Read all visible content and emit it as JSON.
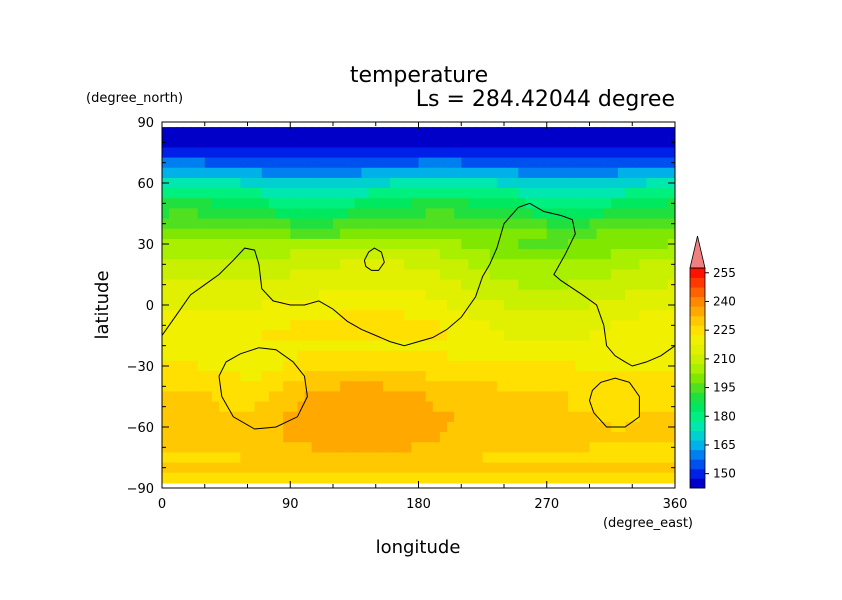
{
  "chart_data": {
    "type": "heatmap",
    "title": "temperature",
    "subtitle": "Ls = 284.42044 degree",
    "xlabel": "longitude",
    "ylabel": "latitude",
    "x_unit": "(degree_east)",
    "y_unit": "(degree_north)",
    "xlim": [
      0,
      360
    ],
    "ylim": [
      -90,
      90
    ],
    "x_ticks": [
      0,
      90,
      180,
      270,
      360
    ],
    "y_ticks": [
      90,
      60,
      30,
      0,
      -30,
      -60,
      -90
    ],
    "x_tick_labels": [
      "0",
      "90",
      "180",
      "270",
      "360"
    ],
    "y_tick_labels": [
      "90",
      "60",
      "30",
      "0",
      "−30",
      "−60",
      "−90"
    ],
    "colorbar": {
      "levels": [
        145,
        150,
        155,
        160,
        165,
        170,
        175,
        180,
        185,
        190,
        195,
        200,
        205,
        210,
        215,
        220,
        225,
        230,
        235,
        240,
        245,
        250,
        255,
        260
      ],
      "colors": [
        "#0000c8",
        "#0020e8",
        "#0050f0",
        "#0080f0",
        "#00b0e8",
        "#00d0d0",
        "#00e8b0",
        "#00f080",
        "#00e860",
        "#20e040",
        "#50e020",
        "#80e800",
        "#a8f000",
        "#c8f000",
        "#e0f000",
        "#f0f000",
        "#ffe000",
        "#ffc800",
        "#ffa800",
        "#ff8800",
        "#ff6000",
        "#ff3800",
        "#ff1000",
        "#ff6060"
      ],
      "tick_labels": [
        "150",
        "165",
        "180",
        "195",
        "210",
        "225",
        "240",
        "255"
      ],
      "overflow_color": "#f08080"
    },
    "latitudes": [
      85,
      80,
      75,
      70,
      65,
      60,
      55,
      50,
      45,
      40,
      35,
      30,
      25,
      20,
      15,
      10,
      5,
      0,
      -5,
      -10,
      -15,
      -20,
      -25,
      -30,
      -35,
      -40,
      -45,
      -50,
      -55,
      -60,
      -65,
      -70,
      -75,
      -80,
      -85
    ],
    "zonal_mean": [
      147,
      149,
      152,
      158,
      166,
      174,
      181,
      187,
      192,
      197,
      201,
      205,
      208,
      211,
      213,
      215,
      217,
      219,
      221,
      223,
      224,
      225,
      226,
      227,
      229,
      231,
      232,
      232,
      233,
      233,
      233,
      232,
      231,
      230,
      229
    ],
    "contours": [
      {
        "name": "northern-boundary",
        "points": [
          [
            0,
            -15
          ],
          [
            10,
            -5
          ],
          [
            20,
            5
          ],
          [
            30,
            10
          ],
          [
            40,
            15
          ],
          [
            50,
            22
          ],
          [
            58,
            28
          ],
          [
            65,
            27
          ],
          [
            68,
            20
          ],
          [
            70,
            8
          ],
          [
            78,
            2
          ],
          [
            90,
            0
          ],
          [
            100,
            0
          ],
          [
            110,
            2
          ],
          [
            120,
            -2
          ],
          [
            130,
            -8
          ],
          [
            140,
            -12
          ],
          [
            150,
            -15
          ],
          [
            160,
            -18
          ],
          [
            170,
            -20
          ],
          [
            180,
            -18
          ],
          [
            190,
            -16
          ],
          [
            200,
            -12
          ],
          [
            210,
            -6
          ],
          [
            220,
            4
          ],
          [
            225,
            14
          ],
          [
            230,
            20
          ],
          [
            235,
            28
          ],
          [
            240,
            40
          ],
          [
            250,
            48
          ],
          [
            258,
            50
          ],
          [
            268,
            46
          ],
          [
            280,
            44
          ],
          [
            288,
            42
          ],
          [
            290,
            35
          ],
          [
            283,
            25
          ],
          [
            275,
            15
          ],
          [
            280,
            12
          ],
          [
            295,
            5
          ],
          [
            305,
            0
          ],
          [
            310,
            -10
          ],
          [
            312,
            -20
          ],
          [
            318,
            -25
          ],
          [
            325,
            -28
          ],
          [
            330,
            -30
          ],
          [
            340,
            -28
          ],
          [
            350,
            -25
          ],
          [
            360,
            -20
          ]
        ]
      },
      {
        "name": "small-island",
        "points": [
          [
            142,
            22
          ],
          [
            145,
            26
          ],
          [
            149,
            28
          ],
          [
            154,
            26
          ],
          [
            156,
            21
          ],
          [
            152,
            17
          ],
          [
            147,
            17
          ],
          [
            143,
            19
          ],
          [
            142,
            22
          ]
        ]
      },
      {
        "name": "southwest-loop",
        "points": [
          [
            40,
            -35
          ],
          [
            45,
            -28
          ],
          [
            55,
            -24
          ],
          [
            68,
            -21
          ],
          [
            80,
            -22
          ],
          [
            92,
            -28
          ],
          [
            100,
            -35
          ],
          [
            102,
            -45
          ],
          [
            95,
            -55
          ],
          [
            80,
            -60
          ],
          [
            65,
            -61
          ],
          [
            50,
            -55
          ],
          [
            42,
            -45
          ],
          [
            40,
            -35
          ]
        ]
      },
      {
        "name": "southeast-loop",
        "points": [
          [
            302,
            -42
          ],
          [
            308,
            -38
          ],
          [
            318,
            -36
          ],
          [
            328,
            -38
          ],
          [
            335,
            -45
          ],
          [
            335,
            -55
          ],
          [
            325,
            -60
          ],
          [
            312,
            -60
          ],
          [
            303,
            -53
          ],
          [
            300,
            -47
          ],
          [
            302,
            -42
          ]
        ]
      }
    ]
  }
}
